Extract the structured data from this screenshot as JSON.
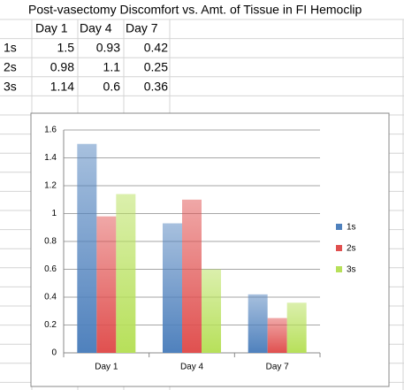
{
  "table": {
    "title": "Post-vasectomy Discomfort vs. Amt. of Tissue in FI Hemoclip",
    "header": [
      "Day 1",
      "Day 4",
      "Day 7"
    ],
    "rows": [
      [
        "1s",
        1.5,
        0.93,
        0.42
      ],
      [
        "2s",
        0.98,
        1.1,
        0.25
      ],
      [
        "3s",
        1.14,
        0.6,
        0.36
      ]
    ]
  },
  "chart_data": {
    "type": "bar",
    "categories": [
      "Day 1",
      "Day 4",
      "Day 7"
    ],
    "series": [
      {
        "name": "1s",
        "color": "#4f81bd",
        "values": [
          1.5,
          0.93,
          0.42
        ]
      },
      {
        "name": "2s",
        "color": "#e0504f",
        "values": [
          0.98,
          1.1,
          0.25
        ]
      },
      {
        "name": "3s",
        "color": "#b7e05a",
        "values": [
          1.14,
          0.6,
          0.36
        ]
      }
    ],
    "ylim": [
      0,
      1.6
    ],
    "yticks": [
      0,
      0.2,
      0.4,
      0.6,
      0.8,
      1,
      1.2,
      1.4,
      1.6
    ],
    "grid": true,
    "legend": "right"
  }
}
